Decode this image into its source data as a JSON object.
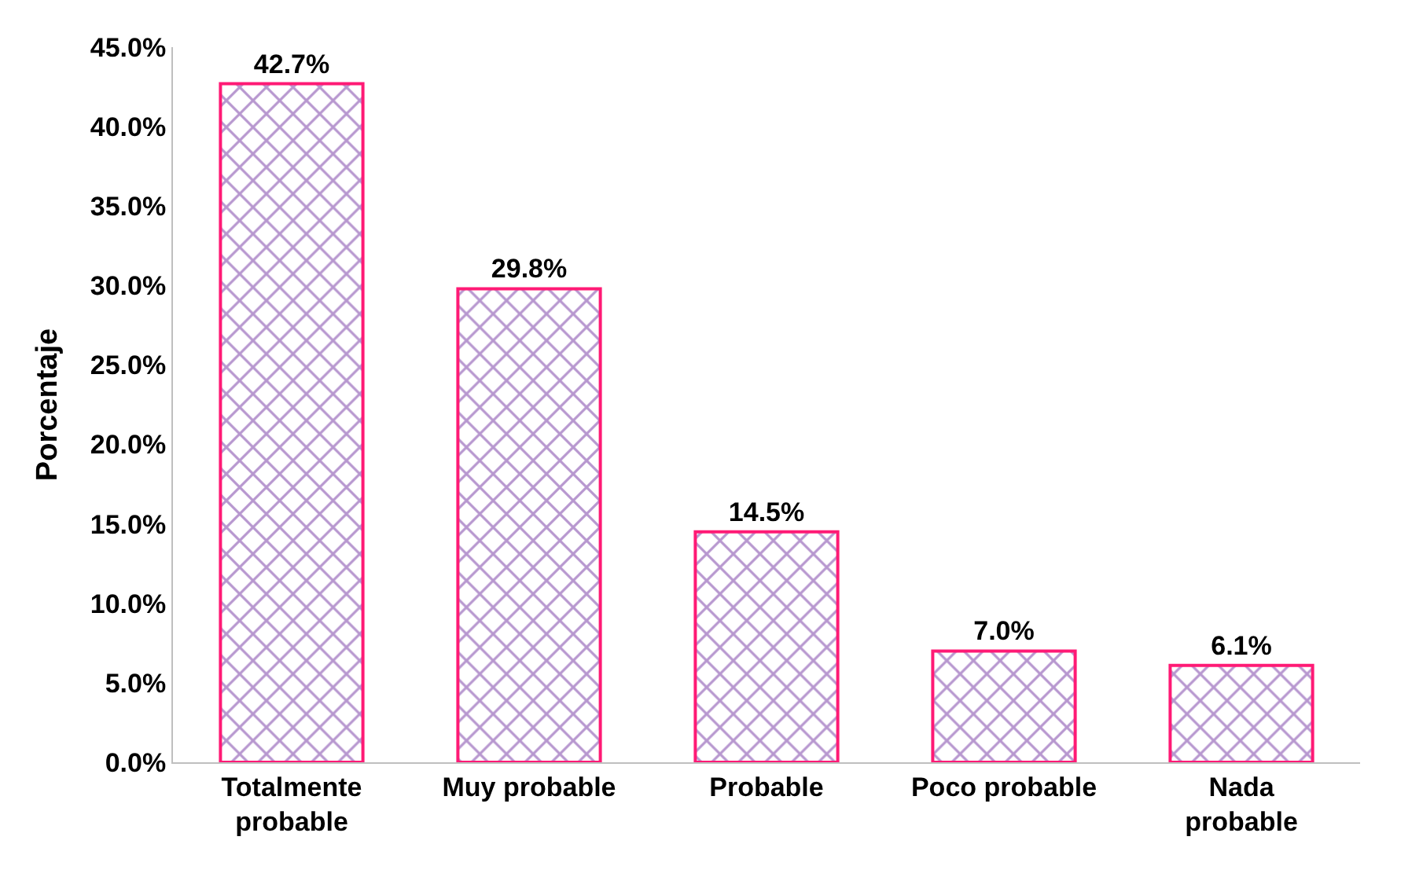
{
  "chart_data": {
    "type": "bar",
    "ylabel": "Porcentaje",
    "categories": [
      "Totalmente probable",
      "Muy probable",
      "Probable",
      "Poco probable",
      "Nada probable"
    ],
    "series": [
      {
        "color": "#ff1a75",
        "values": [
          42.7,
          29.8,
          14.5,
          7.0,
          6.1
        ]
      }
    ],
    "value_labels": [
      "42.7%",
      "29.8%",
      "14.5%",
      "7.0%",
      "6.1%"
    ],
    "ylim": [
      0,
      45
    ],
    "yticks": [
      {
        "value": 0,
        "label": "0.0%"
      },
      {
        "value": 5,
        "label": "5.0%"
      },
      {
        "value": 10,
        "label": "10.0%"
      },
      {
        "value": 15,
        "label": "15.0%"
      },
      {
        "value": 20,
        "label": "20.0%"
      },
      {
        "value": 25,
        "label": "25.0%"
      },
      {
        "value": 30,
        "label": "30.0%"
      },
      {
        "value": 35,
        "label": "35.0%"
      },
      {
        "value": 40,
        "label": "40.0%"
      },
      {
        "value": 45,
        "label": "45.0%"
      }
    ],
    "legend": false
  }
}
